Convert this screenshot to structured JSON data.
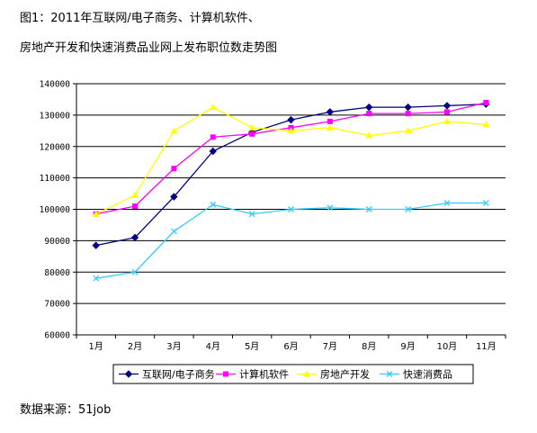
{
  "title_lines": [
    "图1：2011年互联网/电子商务、计算机软件、",
    "房地产开发和快速消费品业网上发布职位数走势图"
  ],
  "source": "数据来源：51job",
  "colors": {
    "internet": "#000080",
    "software": "#ff00ff",
    "realestate": "#ffff00",
    "fmcg": "#33ccff",
    "grid": "#000000",
    "plot_border": "#808080"
  },
  "chart_data": {
    "type": "line",
    "title": "图1：2011年互联网/电子商务、计算机软件、房地产开发和快速消费品业网上发布职位数走势图",
    "categories": [
      "1月",
      "2月",
      "3月",
      "4月",
      "5月",
      "6月",
      "7月",
      "8月",
      "9月",
      "10月",
      "11月"
    ],
    "ylim": [
      60000,
      140000
    ],
    "yticks": [
      60000,
      70000,
      80000,
      90000,
      100000,
      110000,
      120000,
      130000,
      140000
    ],
    "ytick_labels": [
      "60000",
      "70000",
      "80000",
      "90000",
      "100000",
      "110000",
      "120000",
      "130000",
      "140000"
    ],
    "grid": true,
    "legend_position": "bottom",
    "series": [
      {
        "name": "互联网/电子商务",
        "key": "internet",
        "marker": "diamond",
        "values": [
          88500,
          91000,
          104000,
          118500,
          124500,
          128500,
          131000,
          132500,
          132500,
          133000,
          133500
        ]
      },
      {
        "name": "计算机软件",
        "key": "software",
        "marker": "square",
        "values": [
          98500,
          101000,
          113000,
          123000,
          124000,
          126000,
          128000,
          130500,
          130500,
          131000,
          134000
        ]
      },
      {
        "name": "房地产开发",
        "key": "realestate",
        "marker": "triangle",
        "values": [
          98500,
          104500,
          125000,
          132500,
          126000,
          125000,
          126000,
          123500,
          125000,
          128000,
          127000
        ]
      },
      {
        "name": "快速消费品",
        "key": "fmcg",
        "marker": "x",
        "values": [
          78000,
          80000,
          93000,
          101500,
          98500,
          100000,
          100500,
          100000,
          100000,
          102000,
          102000
        ]
      }
    ]
  }
}
